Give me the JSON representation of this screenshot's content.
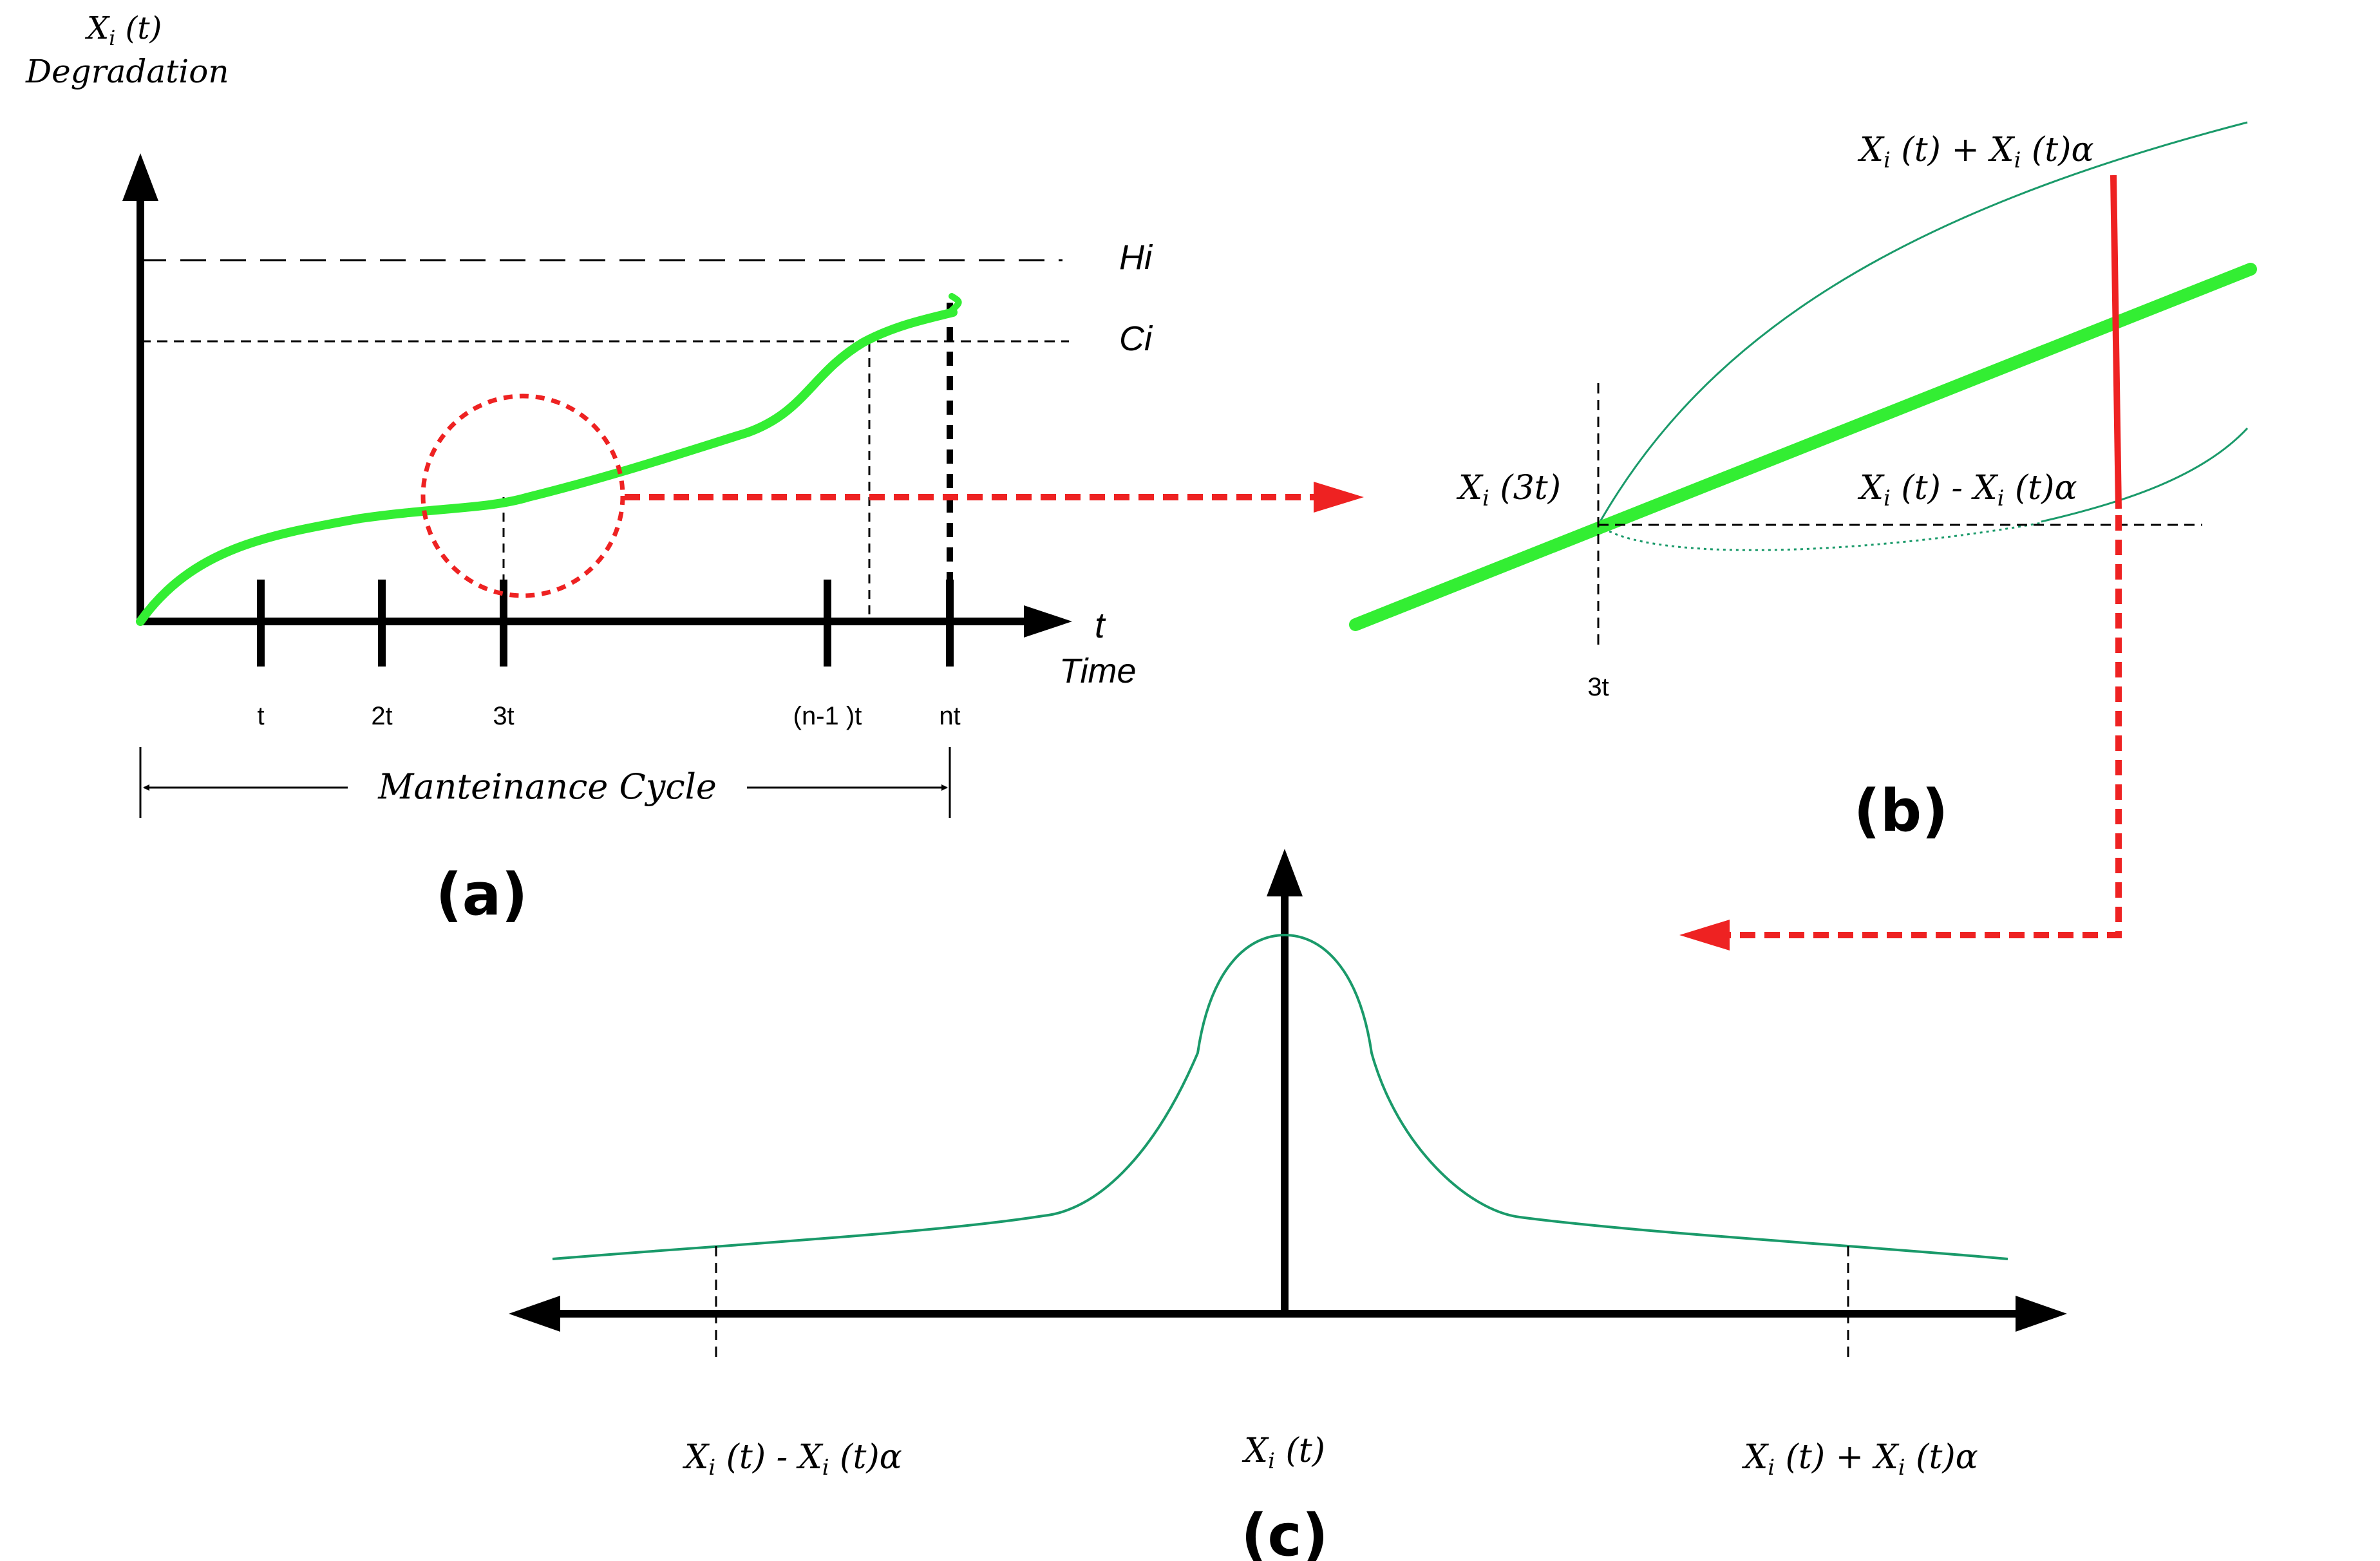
{
  "panel_a": {
    "y_axis_label": "X",
    "y_axis_label_sub": "i",
    "y_axis_label_arg": " (t)",
    "y_axis_title": "Degradation",
    "threshold_h": "Hi",
    "threshold_c": "Ci",
    "x_axis_var": "t",
    "x_axis_title": "Time",
    "ticks": [
      "t",
      "2t",
      "3t",
      "(n-1 )t",
      "nt"
    ],
    "cycle_label": "Manteinance Cycle",
    "panel_label": "(a)"
  },
  "panel_b": {
    "upper_label": {
      "x": "X",
      "sub": "i",
      "rest": " (t) + ",
      "x2": "X",
      "sub2": "i",
      "rest2": " (t)α"
    },
    "lower_label": {
      "x": "X",
      "sub": "i",
      "rest": " (t) - ",
      "x2": "X",
      "sub2": "i",
      "rest2": " (t)α"
    },
    "point_label": {
      "x": "X",
      "sub": "i",
      "rest": " (3t)"
    },
    "tick": "3t",
    "panel_label": "(b)"
  },
  "panel_c": {
    "left_label": {
      "x": "X",
      "sub": "i",
      "rest": " (t) - ",
      "x2": "X",
      "sub2": "i",
      "rest2": " (t)α"
    },
    "center_label": {
      "x": "X",
      "sub": "i",
      "rest": " (t)"
    },
    "right_label": {
      "x": "X",
      "sub": "i",
      "rest": " (t) + ",
      "x2": "X",
      "sub2": "i",
      "rest2": " (t)α"
    },
    "panel_label": "(c)"
  },
  "colors": {
    "degradation_curve": "#33ee33",
    "distribution_curve": "#1a9a6a",
    "highlight": "#ee2222",
    "axis": "#000000"
  }
}
